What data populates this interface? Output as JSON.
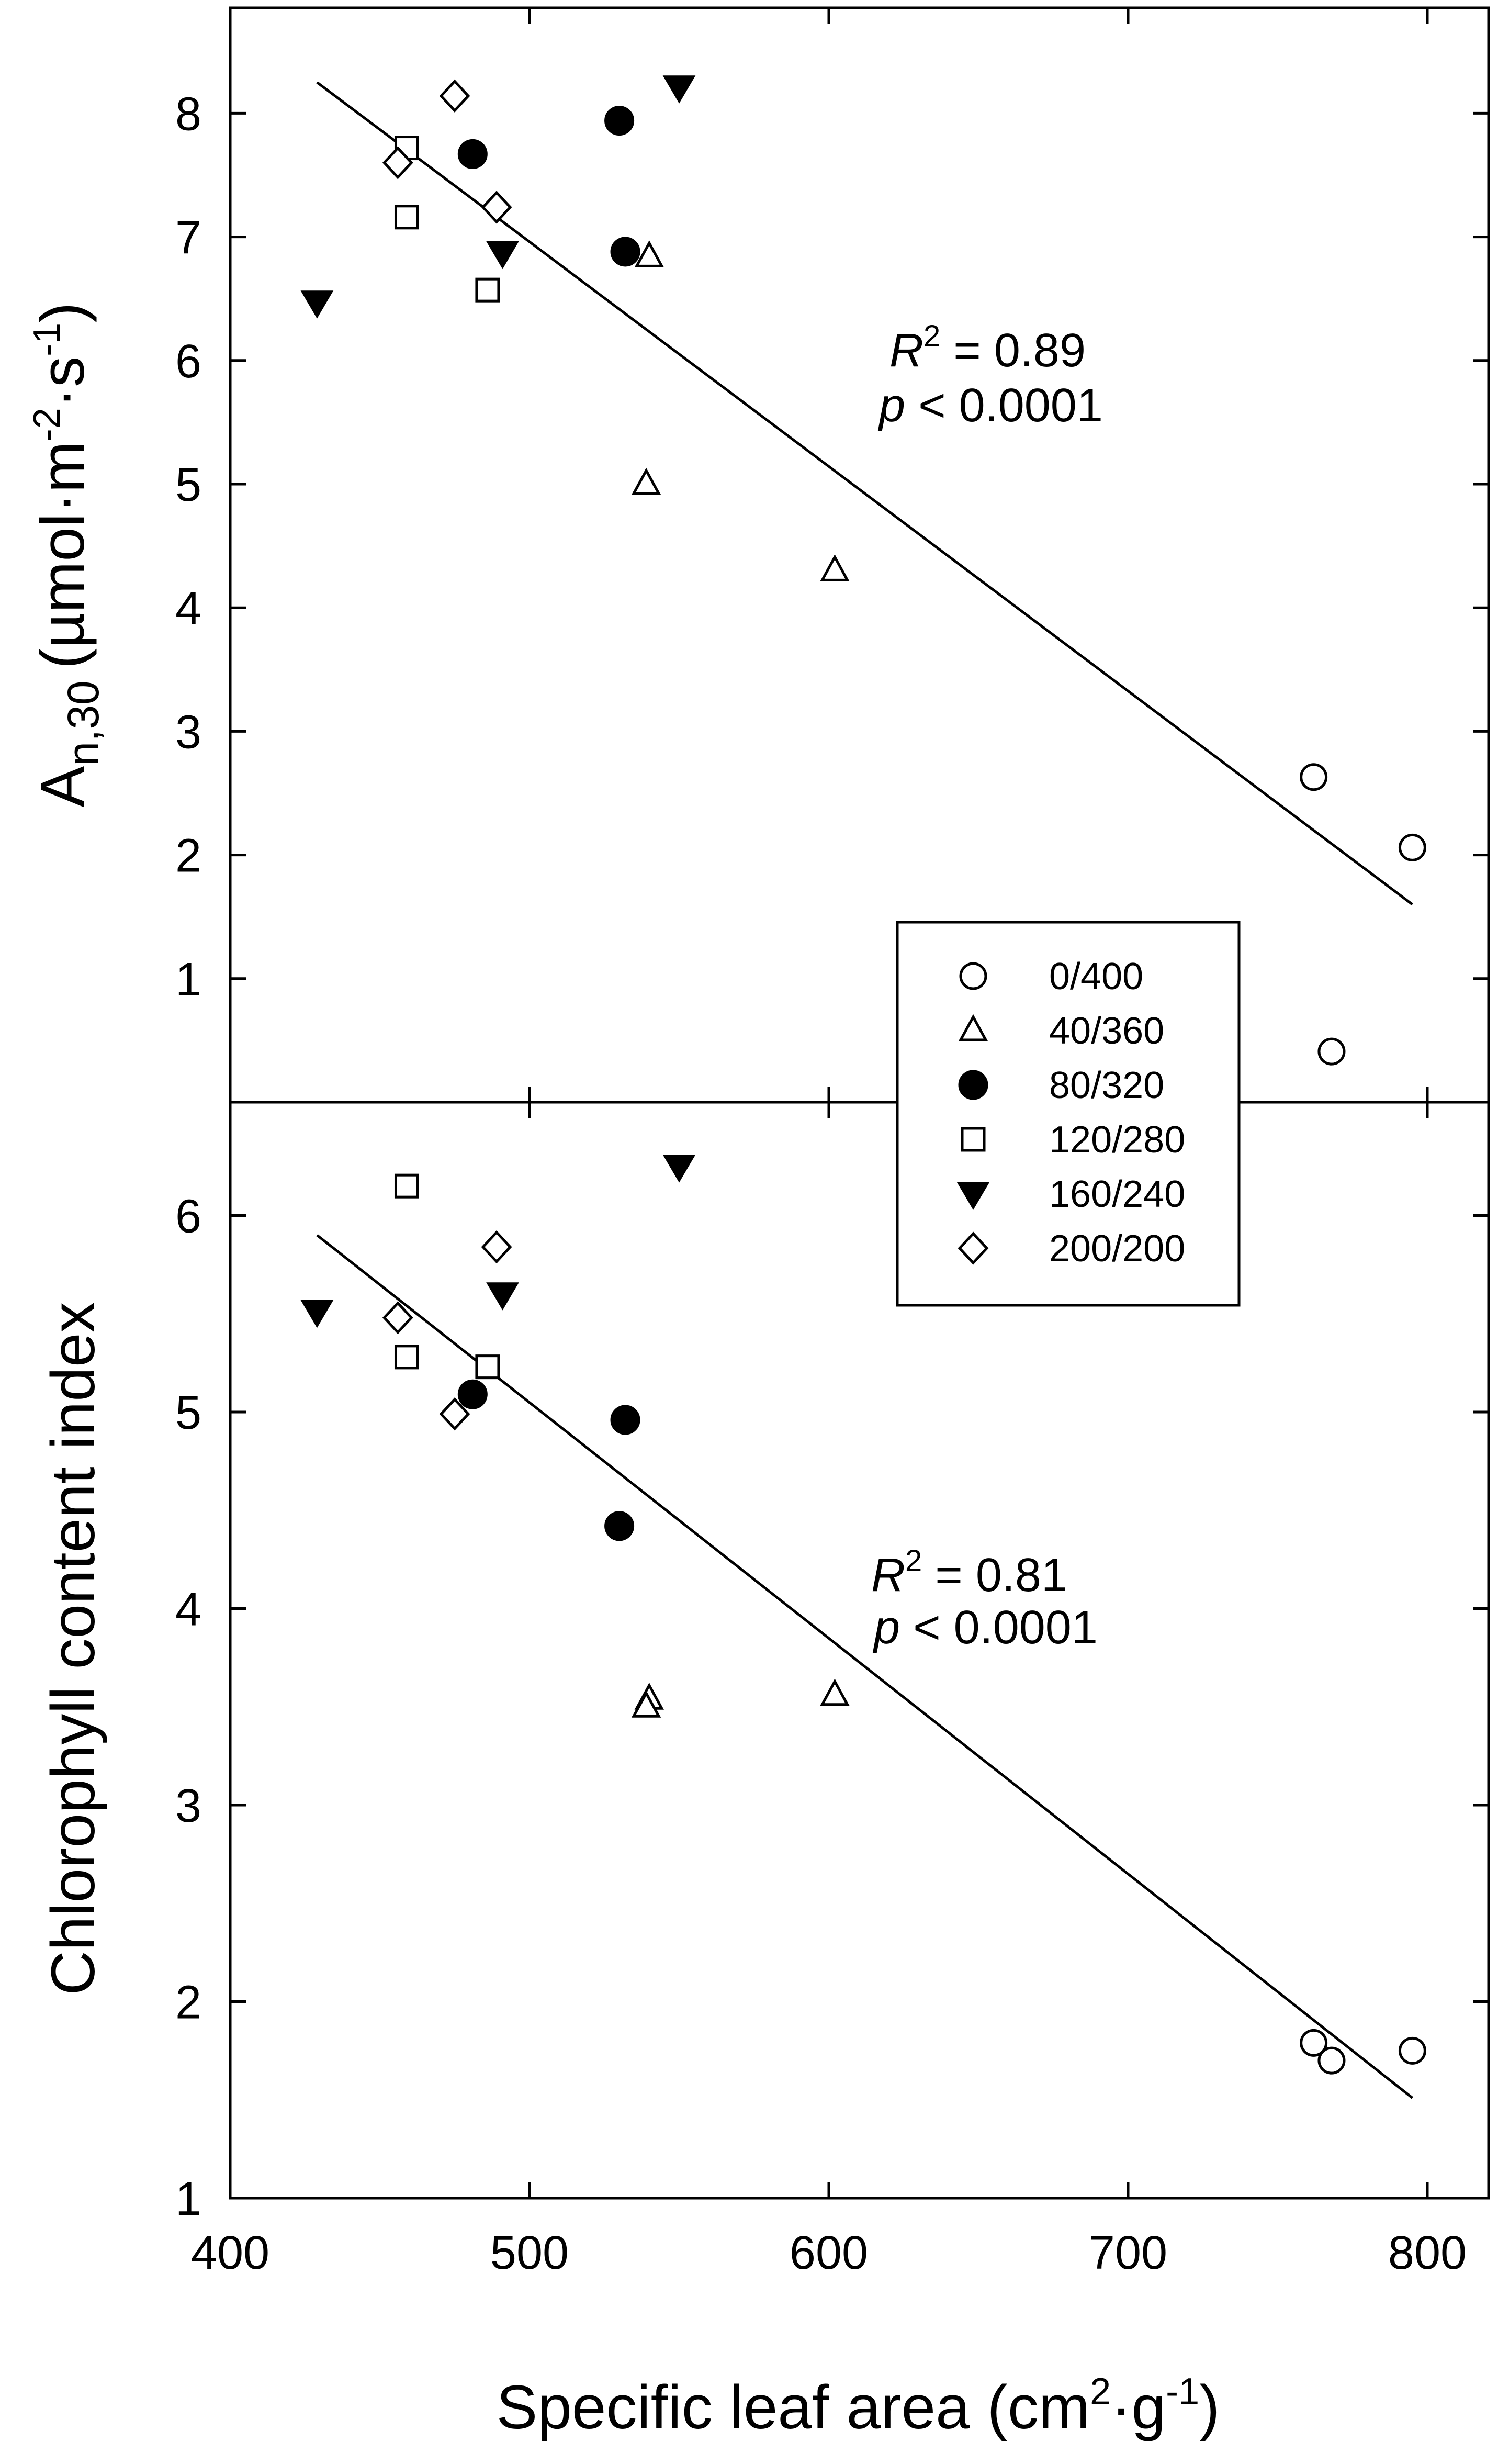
{
  "chart_data": [
    {
      "type": "scatter",
      "panel": "top",
      "ylabel": {
        "main": "A",
        "sub": "n,30",
        "unit": "(µmol·m",
        "exp1": "-2",
        "mid": "·s",
        "exp2": "-1",
        "close": ")"
      },
      "xlim": [
        400,
        820
      ],
      "ylim": [
        0,
        8.6
      ],
      "yticks": [
        "1",
        "2",
        "3",
        "4",
        "5",
        "6",
        "7",
        "8"
      ],
      "ytick_values": [
        1,
        2,
        3,
        4,
        5,
        6,
        7,
        8
      ],
      "annotation": {
        "r2_label": "R",
        "r2_exp": "2",
        "r2_value": " = 0.89",
        "p_label": "p",
        "p_value": " < 0.0001"
      },
      "fit_line": {
        "x": [
          429,
          795
        ],
        "y": [
          8.25,
          1.6
        ]
      },
      "series": [
        {
          "name": "0/400",
          "marker": "circle-open",
          "x": [
            762,
            795,
            768
          ],
          "y": [
            2.63,
            2.06,
            0.41
          ]
        },
        {
          "name": "40/360",
          "marker": "triangle-up-open",
          "x": [
            540,
            539,
            602
          ],
          "y": [
            6.84,
            5.0,
            4.3
          ]
        },
        {
          "name": "80/320",
          "marker": "circle-filled",
          "x": [
            481,
            530,
            532
          ],
          "y": [
            7.67,
            7.94,
            6.88
          ]
        },
        {
          "name": "120/280",
          "marker": "square-open",
          "x": [
            459,
            459,
            486
          ],
          "y": [
            7.72,
            7.16,
            6.57
          ]
        },
        {
          "name": "160/240",
          "marker": "triangle-down-filled",
          "x": [
            550,
            491,
            429
          ],
          "y": [
            8.21,
            6.87,
            6.47
          ]
        },
        {
          "name": "200/200",
          "marker": "diamond-open",
          "x": [
            475,
            456,
            489
          ],
          "y": [
            8.14,
            7.6,
            7.24
          ]
        }
      ],
      "legend": {
        "position": "lower-right",
        "entries": [
          {
            "label": "0/400",
            "marker": "circle-open"
          },
          {
            "label": "40/360",
            "marker": "triangle-up-open"
          },
          {
            "label": "80/320",
            "marker": "circle-filled"
          },
          {
            "label": "120/280",
            "marker": "square-open"
          },
          {
            "label": "160/240",
            "marker": "triangle-down-filled"
          },
          {
            "label": "200/200",
            "marker": "diamond-open"
          }
        ]
      }
    },
    {
      "type": "scatter",
      "panel": "bottom",
      "ylabel": "Chlorophyll content index",
      "xlabel": {
        "main": "Specific leaf area (cm",
        "exp1": "2",
        "mid": "·g",
        "exp2": "-1",
        "close": ")"
      },
      "xlim": [
        400,
        820
      ],
      "ylim": [
        1,
        6.6
      ],
      "xticks": [
        "400",
        "500",
        "600",
        "700",
        "800"
      ],
      "xtick_values": [
        400,
        500,
        600,
        700,
        800
      ],
      "yticks": [
        "1",
        "2",
        "3",
        "4",
        "5",
        "6"
      ],
      "ytick_values": [
        1,
        2,
        3,
        4,
        5,
        6
      ],
      "annotation": {
        "r2_label": "R",
        "r2_exp": "2",
        "r2_value": " = 0.81",
        "p_label": "p",
        "p_value": " < 0.0001"
      },
      "fit_line": {
        "x": [
          429,
          795
        ],
        "y": [
          5.9,
          1.51
        ]
      },
      "series": [
        {
          "name": "0/400",
          "marker": "circle-open",
          "x": [
            762,
            768,
            795
          ],
          "y": [
            1.79,
            1.7,
            1.75
          ]
        },
        {
          "name": "40/360",
          "marker": "triangle-up-open",
          "x": [
            540,
            539,
            602
          ],
          "y": [
            3.54,
            3.5,
            3.56
          ]
        },
        {
          "name": "80/320",
          "marker": "circle-filled",
          "x": [
            481,
            532,
            530
          ],
          "y": [
            5.09,
            4.96,
            4.42
          ]
        },
        {
          "name": "120/280",
          "marker": "square-open",
          "x": [
            459,
            459,
            486
          ],
          "y": [
            6.15,
            5.28,
            5.23
          ]
        },
        {
          "name": "160/240",
          "marker": "triangle-down-filled",
          "x": [
            550,
            491,
            429
          ],
          "y": [
            6.25,
            5.6,
            5.51
          ]
        },
        {
          "name": "200/200",
          "marker": "diamond-open",
          "x": [
            489,
            456,
            475
          ],
          "y": [
            5.84,
            5.48,
            4.99
          ]
        }
      ]
    }
  ]
}
